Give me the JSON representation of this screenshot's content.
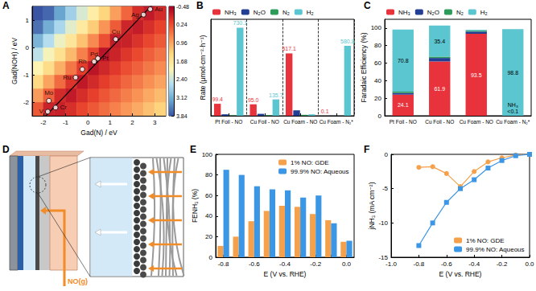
{
  "chart_data": [
    {
      "type": "heatmap",
      "title": "A",
      "x_label": "Gad(N) / eV",
      "y_label": "Gad(NOH) / eV",
      "xlim": [
        -2.5,
        3.5
      ],
      "xticks": [
        -2,
        -1,
        0,
        1,
        2,
        3
      ],
      "ylim": [
        -2.5,
        1.5
      ],
      "yticks": [
        -2,
        -1,
        0,
        1
      ],
      "cell_x": [
        -2.25,
        -1.75,
        -1.25,
        -0.75,
        -0.25,
        0.25,
        0.75,
        1.25,
        1.75,
        2.25,
        2.75,
        3.25
      ],
      "cell_y": [
        -2.25,
        -1.75,
        -1.25,
        -0.75,
        -0.25,
        0.25,
        0.75,
        1.25
      ],
      "cells": [
        [
          0.32,
          -0.15,
          -0.18,
          -0.02,
          0.16,
          0.32,
          0.5,
          0.66,
          0.84,
          1.0,
          1.18,
          1.34
        ],
        [
          0.87,
          0.4,
          -0.07,
          -0.22,
          -0.04,
          0.12,
          0.3,
          0.46,
          0.64,
          0.8,
          0.98,
          1.14
        ],
        [
          1.42,
          0.95,
          0.48,
          0.02,
          -0.24,
          -0.08,
          0.1,
          0.26,
          0.44,
          0.6,
          0.78,
          0.94
        ],
        [
          1.97,
          1.5,
          1.03,
          0.57,
          0.1,
          -0.28,
          -0.1,
          0.06,
          0.24,
          0.4,
          0.58,
          0.74
        ],
        [
          2.52,
          2.05,
          1.58,
          1.12,
          0.65,
          0.18,
          -0.29,
          -0.14,
          0.04,
          0.2,
          0.38,
          0.54
        ],
        [
          3.07,
          2.6,
          2.13,
          1.67,
          1.2,
          0.73,
          0.26,
          -0.2,
          -0.16,
          0.0,
          0.18,
          0.34
        ],
        [
          3.62,
          3.15,
          2.68,
          2.22,
          1.75,
          1.28,
          0.81,
          0.35,
          -0.12,
          -0.2,
          -0.02,
          0.14
        ],
        [
          3.84,
          3.7,
          3.23,
          2.77,
          2.3,
          1.83,
          1.36,
          0.9,
          0.43,
          -0.04,
          -0.22,
          -0.06
        ]
      ],
      "colorbar": {
        "range": [
          -0.48,
          3.84
        ],
        "ticks": [
          -0.48,
          0.24,
          0.96,
          1.68,
          {
            "value": 2.4,
            "label": "2.40"
          },
          3.12,
          3.84
        ]
      },
      "points": {
        "labels": [
          "Mo",
          "V",
          "Cr",
          "Ru",
          "Rh",
          "Pd",
          "Pt",
          "Cu",
          "Ag",
          "Au"
        ],
        "x": [
          -1.75,
          -1.8,
          -1.45,
          -0.55,
          -0.25,
          0.28,
          0.45,
          1.25,
          2.5,
          2.8
        ],
        "y": [
          -1.95,
          -2.35,
          -2.2,
          -1.1,
          -0.8,
          -0.52,
          -0.4,
          0.3,
          1.2,
          1.4
        ]
      },
      "fit_line": {
        "x": [
          -2.0,
          3.0
        ],
        "y": [
          -2.6,
          1.65
        ]
      }
    },
    {
      "type": "bar",
      "title": "B",
      "y_label": "Rate (μmol·cm⁻²·h⁻¹)",
      "categories": [
        "Pt Foil - NO",
        "Cu Foil - NO",
        "Cu Foam - NO",
        "Cu Foam - N₂*"
      ],
      "ylim": [
        0,
        800
      ],
      "tick_labels": "x",
      "legend": "top",
      "series": [
        {
          "name": "NH₃",
          "color": "#e8323c",
          "values": [
            99.4,
            95.0,
            517.1,
            0.1
          ],
          "data_labels": true,
          "value_labels": [
            "99.4",
            "95.0",
            "517.1",
            "0.1"
          ]
        },
        {
          "name": "N₂O",
          "color": "#233f94",
          "values": [
            12,
            16,
            45,
            1
          ]
        },
        {
          "name": "N₂",
          "color": "#2e9b5a",
          "values": [
            4,
            5,
            8,
            0.5
          ]
        },
        {
          "name": "H₂",
          "color": "#5cc6d0",
          "values": [
            730.1,
            135.7,
            12,
            580.8
          ],
          "data_labels": true,
          "value_labels": [
            "730.1",
            "135.7",
            null,
            "580.8"
          ]
        }
      ]
    },
    {
      "type": "bar",
      "title": "C",
      "y_label": "Faradaic Efficiency (%)",
      "stacked": true,
      "categories": [
        "Pt Foil - NO",
        "Cu Foil - NO",
        "Cu Foam - NO",
        "Cu Foam - N₂*"
      ],
      "ylim": [
        0,
        110
      ],
      "yticks": [
        0,
        20,
        40,
        60,
        80,
        100
      ],
      "legend": "top",
      "series": [
        {
          "name": "NH₃",
          "color": "#e8323c",
          "values": [
            24.1,
            61.9,
            93.5,
            0
          ],
          "data_labels": true,
          "value_labels": [
            "24.1",
            "61.9",
            "93.5",
            null
          ]
        },
        {
          "name": "N₂O",
          "color": "#233f94",
          "values": [
            2.0,
            4.0,
            2.5,
            0
          ]
        },
        {
          "name": "N₂",
          "color": "#2e9b5a",
          "values": [
            1.5,
            1.5,
            1.0,
            0
          ]
        },
        {
          "name": "H₂",
          "color": "#5cc6d0",
          "values": [
            70.8,
            35.4,
            1.0,
            98.8
          ],
          "data_labels": true,
          "value_labels": [
            "70.8",
            "35.4",
            null,
            "98.8"
          ]
        }
      ],
      "annotations": [
        {
          "text": "NH₃\n<0.1",
          "series": "NH₃",
          "category": "Cu Foam - N₂*"
        }
      ]
    },
    {
      "type": "bar",
      "title": "E",
      "x_label": "E (V vs. RHE)",
      "y_label": "FENH₃ (%)",
      "categories": [
        "-0.8",
        null,
        "-0.6",
        null,
        "-0.4",
        null,
        "-0.2",
        null,
        "0.0"
      ],
      "ylim": [
        0,
        100
      ],
      "yticks": [
        0,
        20,
        40,
        60,
        80,
        100
      ],
      "legend": "upper right",
      "series": [
        {
          "name": "1% NO: GDE",
          "color": "#f5a04a",
          "values": [
            11,
            20,
            35,
            45,
            50,
            49,
            42,
            36,
            15
          ]
        },
        {
          "name": "99.9% NO: Aqueous",
          "color": "#3c96e6",
          "values": [
            85,
            80,
            69,
            66,
            65,
            58,
            60,
            33,
            16
          ]
        }
      ]
    },
    {
      "type": "line",
      "title": "F",
      "x_label": "E (V vs. RHE)",
      "y_label": "jNH₃ (mA cm⁻²)",
      "xlim": [
        -1,
        0
      ],
      "xticks": [
        {
          "value": -1,
          "label": "-1.0"
        },
        -0.8,
        -0.6,
        -0.4,
        -0.2,
        {
          "value": 0,
          "label": "0.0"
        }
      ],
      "ylim": [
        -15,
        0
      ],
      "yticks": [
        -15,
        -10,
        -5,
        0
      ],
      "legend": "lower right",
      "x": [
        -0.8,
        -0.7,
        -0.6,
        -0.5,
        -0.4,
        -0.3,
        -0.2,
        -0.1,
        0
      ],
      "series": [
        {
          "name": "1% NO: GDE",
          "color": "#f5a04a",
          "marker": "circle",
          "values": [
            -1.9,
            -1.8,
            -2.8,
            -4.7,
            -2.5,
            -1.1,
            -0.5,
            -0.1,
            0
          ]
        },
        {
          "name": "99.9% NO: Aqueous",
          "color": "#3c96e6",
          "marker": "square",
          "values": [
            -13.3,
            -10,
            -7,
            -5,
            -3.7,
            -2,
            -0.9,
            -0.2,
            0
          ]
        }
      ]
    }
  ],
  "diagram": {
    "title": "D",
    "text": "NO(g)"
  }
}
